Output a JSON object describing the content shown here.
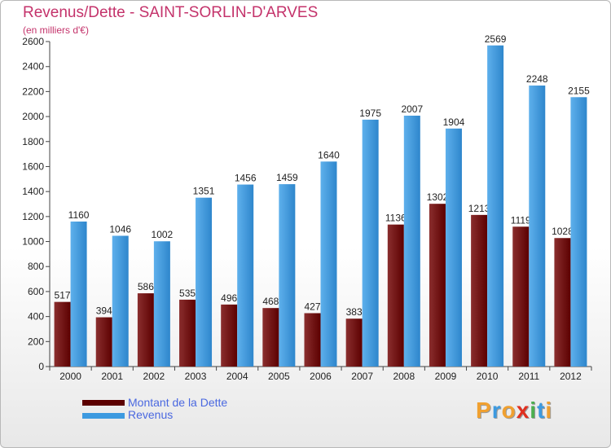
{
  "header": {
    "title": "Revenus/Dette - SAINT-SORLIN-D'ARVES",
    "subtitle": "(en milliers d'€)"
  },
  "legend": {
    "debt_label": "Montant de la Dette",
    "revenue_label": "Revenus"
  },
  "brand": {
    "text": "Proxiti",
    "letters": [
      {
        "ch": "P",
        "color": "#f0a030"
      },
      {
        "ch": "r",
        "color": "#3d9ae0"
      },
      {
        "ch": "o",
        "color": "#f0a030"
      },
      {
        "ch": "x",
        "color": "#e03020"
      },
      {
        "ch": "i",
        "color": "#4caf50"
      },
      {
        "ch": "t",
        "color": "#3d9ae0"
      },
      {
        "ch": "i",
        "color": "#f0a030"
      }
    ]
  },
  "colors": {
    "title": "#c4336b",
    "debt_dark": "#5c0000",
    "debt_light": "#8a2e2e",
    "revenue_dark": "#2e86cc",
    "revenue_light": "#5eb0ec",
    "axis": "#444444"
  },
  "chart_data": {
    "type": "bar",
    "title": "Revenus/Dette - SAINT-SORLIN-D'ARVES",
    "ylabel": "(en milliers d'€)",
    "xlabel": "",
    "categories": [
      "2000",
      "2001",
      "2002",
      "2003",
      "2004",
      "2005",
      "2006",
      "2007",
      "2008",
      "2009",
      "2010",
      "2011",
      "2012"
    ],
    "series": [
      {
        "name": "Montant de la Dette",
        "values": [
          517,
          394,
          586,
          535,
          496,
          468,
          427,
          383,
          1136,
          1302,
          1213,
          1119,
          1028
        ]
      },
      {
        "name": "Revenus",
        "values": [
          1160,
          1046,
          1002,
          1351,
          1456,
          1459,
          1640,
          1975,
          2007,
          1904,
          2569,
          2248,
          2155
        ]
      }
    ],
    "ylim": [
      0,
      2600
    ],
    "yticks": [
      0,
      200,
      400,
      600,
      800,
      1000,
      1200,
      1400,
      1600,
      1800,
      2000,
      2200,
      2400,
      2600
    ],
    "grid": false,
    "legend_position": "bottom-left"
  }
}
